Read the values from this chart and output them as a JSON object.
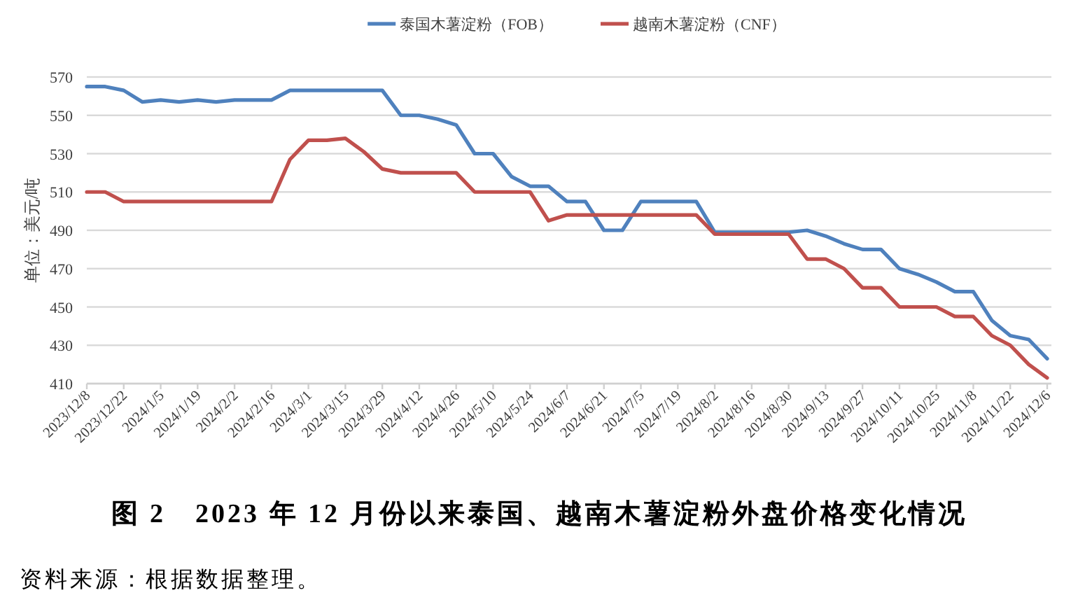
{
  "chart_data": {
    "type": "line",
    "title": "图 2　2023 年 12 月份以来泰国、越南木薯淀粉外盘价格变化情况",
    "ylabel": "单位：美元/吨",
    "annotations": [
      "资料来源：根据数据整理。"
    ],
    "categories": [
      "2023/12/8",
      null,
      "2023/12/22",
      null,
      "2024/1/5",
      null,
      "2024/1/19",
      null,
      "2024/2/2",
      null,
      "2024/2/16",
      null,
      "2024/3/1",
      null,
      "2024/3/15",
      null,
      "2024/3/29",
      null,
      "2024/4/12",
      null,
      "2024/4/26",
      null,
      "2024/5/10",
      null,
      "2024/5/24",
      null,
      "2024/6/7",
      null,
      "2024/6/21",
      null,
      "2024/7/5",
      null,
      "2024/7/19",
      null,
      "2024/8/2",
      null,
      "2024/8/16",
      null,
      "2024/8/30",
      null,
      "2024/9/13",
      null,
      "2024/9/27",
      null,
      "2024/10/11",
      null,
      "2024/10/25",
      null,
      "2024/11/8",
      null,
      "2024/11/22",
      null,
      "2024/12/6"
    ],
    "series": [
      {
        "name": "泰国木薯淀粉（FOB）",
        "color": "#4f81bd",
        "values": [
          565,
          565,
          563,
          557,
          558,
          557,
          558,
          557,
          558,
          558,
          558,
          563,
          563,
          563,
          563,
          563,
          563,
          550,
          550,
          548,
          545,
          530,
          530,
          518,
          513,
          513,
          505,
          505,
          490,
          490,
          505,
          505,
          505,
          505,
          489,
          489,
          489,
          489,
          489,
          490,
          487,
          483,
          480,
          480,
          470,
          467,
          463,
          458,
          458,
          443,
          435,
          433,
          423
        ]
      },
      {
        "name": "越南木薯淀粉（CNF）",
        "color": "#c0504d",
        "values": [
          510,
          510,
          505,
          505,
          505,
          505,
          505,
          505,
          505,
          505,
          505,
          527,
          537,
          537,
          538,
          531,
          522,
          520,
          520,
          520,
          520,
          510,
          510,
          510,
          510,
          495,
          498,
          498,
          498,
          498,
          498,
          498,
          498,
          498,
          488,
          488,
          488,
          488,
          488,
          475,
          475,
          470,
          460,
          460,
          450,
          450,
          450,
          445,
          445,
          435,
          430,
          420,
          413
        ]
      }
    ],
    "ylim": [
      410,
      570
    ],
    "yticks": [
      410,
      430,
      450,
      470,
      490,
      510,
      530,
      550,
      570
    ],
    "grid": "y",
    "legend": "top"
  }
}
